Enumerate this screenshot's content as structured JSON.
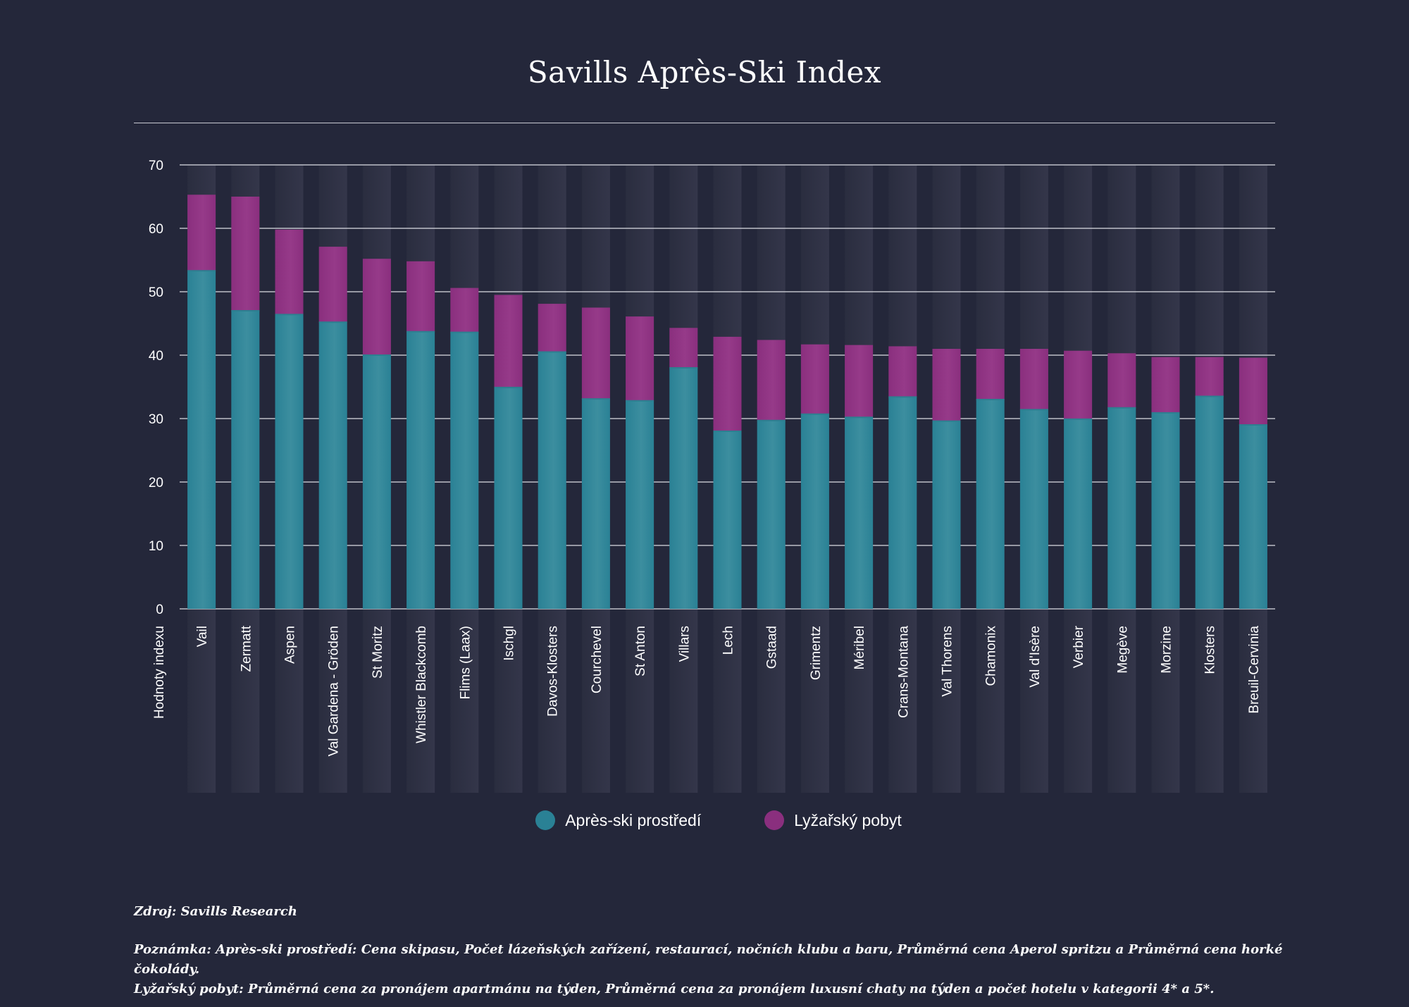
{
  "title": "Savills Après-Ski Index",
  "colors": {
    "background": "#24273a",
    "apres": "#2a8195",
    "ski": "#8a2f7e",
    "grid": "#dcdde4",
    "stripe": "#2e3042"
  },
  "legend": {
    "apres_label": "Après-ski prostředí",
    "ski_label": "Lyžařský pobyt"
  },
  "source": "Zdroj: Savills Research",
  "note_line1": "Poznámka: Après-ski prostředí: Cena skipasu, Počet lázeňských zařízení, restaurací, nočních klubu a baru, Průměrná cena Aperol spritzu a Průměrná cena horké čokolády.",
  "note_line2": "Lyžařský pobyt: Průměrná cena za pronájem apartmánu na týden, Průměrná cena za pronájem luxusní chaty na týden a počet hotelu v kategorii 4* a 5*.",
  "chart_data": {
    "type": "bar",
    "stacked": true,
    "title": "Savills Après-Ski Index",
    "xlabel": "",
    "ylabel": "Hodnoty indexu",
    "ylim": [
      0,
      70
    ],
    "yticks": [
      0,
      10,
      20,
      30,
      40,
      50,
      60,
      70
    ],
    "grid": true,
    "legend_position": "bottom",
    "categories": [
      "Vail",
      "Zermatt",
      "Aspen",
      "Val Gardena - Gröden",
      "St Moritz",
      "Whistler Blackcomb",
      "Flims (Laax)",
      "Ischgl",
      "Davos-Klosters",
      "Courchevel",
      "St Anton",
      "Villars",
      "Lech",
      "Gstaad",
      "Grimentz",
      "Méribel",
      "Crans-Montana",
      "Val Thorens",
      "Chamonix",
      "Val d'Isère",
      "Verbier",
      "Megève",
      "Morzine",
      "Klosters",
      "Breuil-Cervinia"
    ],
    "series": [
      {
        "name": "Après-ski prostředí",
        "values": [
          53.3,
          47.0,
          46.4,
          45.2,
          40.0,
          43.7,
          43.6,
          34.9,
          40.5,
          33.1,
          32.8,
          38.0,
          28.0,
          29.7,
          30.7,
          30.2,
          33.4,
          29.6,
          33.0,
          31.4,
          29.9,
          31.7,
          30.9,
          33.5,
          29.0
        ]
      },
      {
        "name": "Lyžařský pobyt",
        "values": [
          12.0,
          18.0,
          13.4,
          11.9,
          15.2,
          11.1,
          7.0,
          14.6,
          7.6,
          14.4,
          13.3,
          6.3,
          14.9,
          12.7,
          11.0,
          11.4,
          8.0,
          11.4,
          8.0,
          9.6,
          10.8,
          8.6,
          8.8,
          6.2,
          10.6
        ]
      }
    ]
  }
}
